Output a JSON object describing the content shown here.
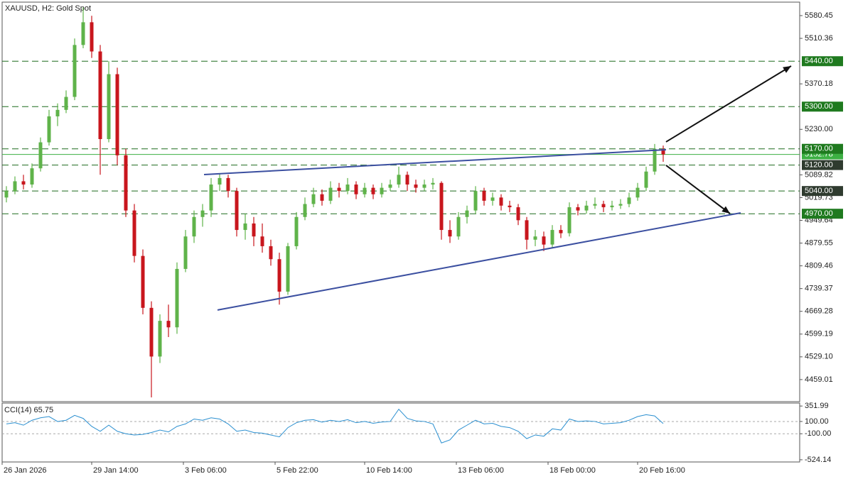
{
  "chart_data": [
    {
      "type": "candlestick",
      "title": "XAUUSD, H2:  Gold Spot",
      "open": [
        5020,
        5040,
        5070,
        5060,
        5110,
        5190,
        5270,
        5290,
        5330,
        5490,
        5560,
        5470,
        5200,
        5400,
        5150,
        4980,
        4840,
        4680,
        4530,
        4640,
        4620,
        4800,
        4900,
        4960,
        4980,
        5060,
        5080,
        5040,
        4920,
        4940,
        4900,
        4870,
        4830,
        4730,
        4870,
        4960,
        5000,
        5030,
        5010,
        5050,
        5040,
        5060,
        5030,
        5050,
        5030,
        5050,
        5060,
        5090,
        5060,
        5050,
        5060,
        5065,
        4920,
        4900,
        4960,
        4980,
        5040,
        5010,
        5020,
        4995,
        4990,
        4950,
        4890,
        4900,
        4875,
        4920,
        4910,
        4990,
        4980,
        4995,
        5000,
        4990,
        4995,
        5000,
        5020,
        5050,
        5100,
        5170
      ],
      "high": [
        5055,
        5085,
        5090,
        5125,
        5205,
        5290,
        5310,
        5350,
        5510,
        5606,
        5580,
        5490,
        5440,
        5420,
        5170,
        5000,
        4860,
        4700,
        4660,
        4690,
        4820,
        4920,
        4980,
        5000,
        5080,
        5095,
        5090,
        5050,
        4970,
        4960,
        4940,
        4890,
        4850,
        4880,
        4975,
        5020,
        5050,
        5045,
        5070,
        5065,
        5080,
        5070,
        5065,
        5060,
        5065,
        5075,
        5115,
        5100,
        5075,
        5075,
        5080,
        5070,
        4950,
        4975,
        4995,
        5055,
        5050,
        5035,
        5030,
        5010,
        5000,
        4960,
        4920,
        4915,
        4935,
        4935,
        5005,
        5000,
        5010,
        5020,
        5010,
        5010,
        5015,
        5035,
        5065,
        5115,
        5185,
        5180
      ],
      "low": [
        5005,
        5030,
        5045,
        5050,
        5100,
        5180,
        5240,
        5280,
        5320,
        5480,
        5450,
        5090,
        5190,
        5120,
        4960,
        4820,
        4660,
        4404,
        4510,
        4590,
        4600,
        4790,
        4880,
        4930,
        4960,
        5040,
        5020,
        4900,
        4890,
        4870,
        4850,
        4810,
        4690,
        4720,
        4860,
        4950,
        4990,
        4995,
        5000,
        5020,
        5030,
        5015,
        5020,
        5015,
        5020,
        5040,
        5050,
        5040,
        5035,
        5040,
        5045,
        4890,
        4880,
        4890,
        4940,
        4970,
        4995,
        4995,
        4980,
        4975,
        4935,
        4860,
        4870,
        4855,
        4865,
        4895,
        4900,
        4965,
        4970,
        4985,
        4975,
        4980,
        4985,
        4990,
        5010,
        5040,
        5090,
        5130
      ],
      "close": [
        5040,
        5070,
        5060,
        5110,
        5190,
        5270,
        5290,
        5330,
        5490,
        5560,
        5470,
        5200,
        5400,
        5150,
        4980,
        4840,
        4680,
        4530,
        4640,
        4620,
        4800,
        4900,
        4960,
        4980,
        5060,
        5080,
        5040,
        4920,
        4940,
        4900,
        4870,
        4830,
        4730,
        4870,
        4960,
        5000,
        5030,
        5010,
        5050,
        5040,
        5060,
        5030,
        5050,
        5030,
        5050,
        5060,
        5090,
        5060,
        5050,
        5060,
        5065,
        4920,
        4900,
        4960,
        4980,
        5040,
        5010,
        5020,
        4995,
        4990,
        4950,
        4890,
        4900,
        4875,
        4920,
        4910,
        4990,
        4980,
        4995,
        5000,
        4990,
        4995,
        5000,
        5020,
        5050,
        5100,
        5170,
        5152.78
      ],
      "up_color": "#5fb34a",
      "down_color": "#c8161d",
      "xlim": [
        -0.5,
        93
      ],
      "xticks": [
        {
          "value": -0.5,
          "label": "26 Jan 2026"
        },
        {
          "value": 10,
          "label": "29 Jan 14:00"
        },
        {
          "value": 20.75,
          "label": "3 Feb 06:00"
        },
        {
          "value": 31.5,
          "label": "5 Feb 22:00"
        },
        {
          "value": 42,
          "label": "10 Feb 14:00"
        },
        {
          "value": 52.75,
          "label": "13 Feb 06:00"
        },
        {
          "value": 63.5,
          "label": "18 Feb 00:00"
        },
        {
          "value": 74,
          "label": "20 Feb 16:00"
        }
      ],
      "ylim": [
        4391,
        5622
      ],
      "yticks": [
        5580.45,
        5510.36,
        5370.18,
        {
          "value": 5230,
          "label": "5230.00"
        },
        5089.82,
        5019.73,
        4949.64,
        4879.55,
        4809.46,
        4739.37,
        4669.28,
        4599.19,
        {
          "value": 4529.1,
          "label": "4529.10"
        },
        4459.01
      ],
      "price_line": {
        "value": 5152.78,
        "color": "#3cb043"
      },
      "levels": [
        {
          "value": 5440,
          "label": "5440.00",
          "color": "#1f7a1f"
        },
        {
          "value": 5300,
          "label": "5300.00",
          "color": "#1f7a1f"
        },
        {
          "value": 5170,
          "label": "5170.00",
          "color": "#1f7a1f"
        },
        {
          "value": 5120,
          "label": "5120.00",
          "color": "#2f3b2f"
        },
        {
          "value": 5040,
          "label": "5040.00",
          "color": "#2f3b2f"
        },
        {
          "value": 4970,
          "label": "4970.00",
          "color": "#1f7a1f"
        }
      ],
      "trendlines": [
        {
          "x": [
            23.17,
            77.33
          ],
          "y": [
            5090.8,
            5167.3
          ],
          "color": "#3b4fa0"
        },
        {
          "x": [
            24.75,
            86.08
          ],
          "y": [
            4673.3,
            4972.7
          ],
          "color": "#3b4fa0"
        }
      ],
      "arrows": [
        {
          "x": [
            77.33,
            92.0
          ],
          "y": [
            5191.4,
            5425.2
          ],
          "color": "#111111"
        },
        {
          "x": [
            77.33,
            84.83
          ],
          "y": [
            5119.2,
            4970.5
          ],
          "color": "#111111"
        }
      ]
    },
    {
      "type": "line",
      "title": "CCI(14) 65.75",
      "color": "#2a8fd0",
      "values": [
        60,
        80,
        40,
        120,
        160,
        180,
        100,
        120,
        200,
        150,
        20,
        -60,
        40,
        -60,
        -100,
        -120,
        -110,
        -80,
        -40,
        -70,
        20,
        60,
        140,
        120,
        160,
        140,
        60,
        -60,
        -40,
        -80,
        -90,
        -120,
        -150,
        0,
        80,
        120,
        130,
        90,
        120,
        100,
        130,
        80,
        100,
        70,
        90,
        100,
        300,
        150,
        110,
        100,
        60,
        -250,
        -200,
        -40,
        40,
        120,
        60,
        70,
        20,
        0,
        -60,
        -180,
        -120,
        -140,
        -20,
        -40,
        140,
        100,
        110,
        100,
        60,
        70,
        80,
        120,
        180,
        210,
        190,
        65.75
      ],
      "ylim": [
        -560,
        400
      ],
      "yticks": [
        351.99,
        {
          "value": 100,
          "label": "100.00"
        },
        {
          "value": -100,
          "label": "-100.00"
        },
        -524.14
      ]
    }
  ]
}
